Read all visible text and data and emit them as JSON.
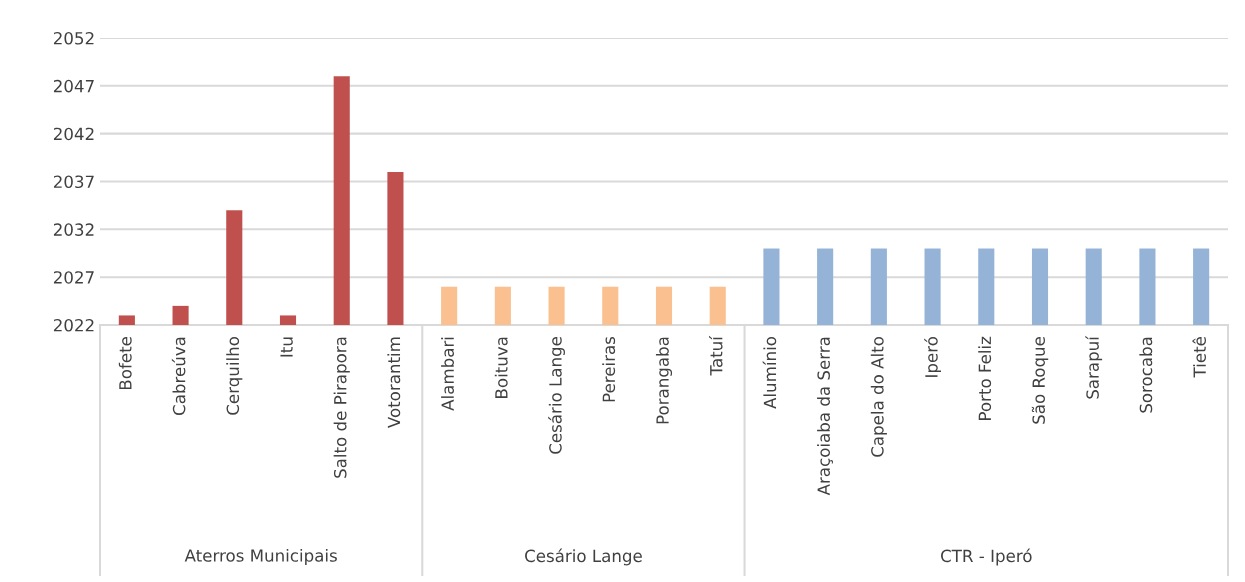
{
  "chart_data": {
    "type": "bar",
    "categories": [
      "Bofete",
      "Cabreúva",
      "Cerquilho",
      "Itu",
      "Salto de Pirapora",
      "Votorantim",
      "Alambari",
      "Boituva",
      "Cesário Lange",
      "Pereiras",
      "Porangaba",
      "Tatuí",
      "Alumínio",
      "Araçoiaba da Serra",
      "Capela do Alto",
      "Iperó",
      "Porto Feliz",
      "São Roque",
      "Sarapuí",
      "Sorocaba",
      "Tietê"
    ],
    "values": [
      2023,
      2024,
      2034,
      2023,
      2048,
      2038,
      2026,
      2026,
      2026,
      2026,
      2026,
      2026,
      2030,
      2030,
      2030,
      2030,
      2030,
      2030,
      2030,
      2030,
      2030
    ],
    "colors": [
      "#c0504d",
      "#c0504d",
      "#c0504d",
      "#c0504d",
      "#c0504d",
      "#c0504d",
      "#fac090",
      "#fac090",
      "#fac090",
      "#fac090",
      "#fac090",
      "#fac090",
      "#95b3d7",
      "#95b3d7",
      "#95b3d7",
      "#95b3d7",
      "#95b3d7",
      "#95b3d7",
      "#95b3d7",
      "#95b3d7",
      "#95b3d7"
    ],
    "annotations": [
      "Aterros Municipais",
      "Cesário Lange",
      "CTR - Iperó"
    ],
    "ylim": [
      2022,
      2052
    ],
    "yticks": [
      2022,
      2027,
      2032,
      2037,
      2042,
      2047,
      2052
    ],
    "grid": "y",
    "legend": false
  }
}
